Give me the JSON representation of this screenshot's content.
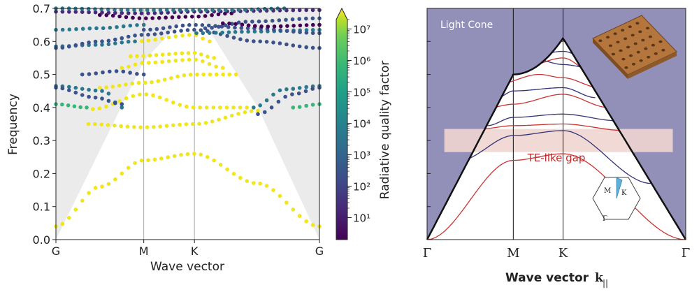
{
  "chart_data": [
    {
      "type": "scatter",
      "xlabel": "Wave vector",
      "ylabel": "Frequency",
      "x_ticks": [
        "G",
        "M",
        "K",
        "G"
      ],
      "x_tick_positions": [
        0,
        1,
        1.577,
        3.0
      ],
      "ylim": [
        0.0,
        0.7
      ],
      "y_ticks": [
        "0.0",
        "0.1",
        "0.2",
        "0.3",
        "0.4",
        "0.5",
        "0.6",
        "0.7"
      ],
      "colorbar": {
        "label": "Radiative quality factor",
        "scale": "log",
        "range": [
          2,
          20000000
        ],
        "ticks": [
          "10¹",
          "10²",
          "10³",
          "10⁴",
          "10⁵",
          "10⁶",
          "10⁷"
        ],
        "tick_values": [
          10,
          100,
          1000,
          10000,
          100000,
          1000000,
          10000000
        ],
        "colormap": "viridis"
      },
      "light_cone": true,
      "series": [
        {
          "kind": "below-cone",
          "color": "#f1e51d",
          "knots": [
            [
              0.0,
              0.04
            ],
            [
              0.5,
              0.16
            ],
            [
              1.0,
              0.24
            ],
            [
              1.577,
              0.26
            ],
            [
              2.3,
              0.17
            ],
            [
              3.0,
              0.04
            ]
          ]
        },
        {
          "kind": "below-cone",
          "color": "#f1e51d",
          "knots": [
            [
              0.37,
              0.35
            ],
            [
              1.0,
              0.34
            ],
            [
              1.577,
              0.35
            ],
            [
              2.3,
              0.39
            ]
          ]
        },
        {
          "kind": "below-cone",
          "color": "#f1e51d",
          "knots": [
            [
              0.42,
              0.395
            ],
            [
              1.0,
              0.44
            ],
            [
              1.577,
              0.4
            ],
            [
              2.25,
              0.4
            ]
          ]
        },
        {
          "kind": "below-cone",
          "color": "#f1e51d",
          "knots": [
            [
              0.5,
              0.46
            ],
            [
              1.0,
              0.475
            ],
            [
              1.577,
              0.5
            ],
            [
              2.05,
              0.5
            ]
          ]
        },
        {
          "kind": "below-cone",
          "color": "#f1e51d",
          "knots": [
            [
              0.75,
              0.52
            ],
            [
              1.0,
              0.535
            ],
            [
              1.577,
              0.545
            ],
            [
              1.9,
              0.52
            ]
          ]
        },
        {
          "kind": "below-cone",
          "color": "#f1e51d",
          "knots": [
            [
              0.85,
              0.555
            ],
            [
              1.577,
              0.565
            ],
            [
              1.8,
              0.55
            ]
          ]
        },
        {
          "kind": "below-cone",
          "color": "#f1e51d",
          "knots": [
            [
              0.9,
              0.6
            ],
            [
              1.577,
              0.62
            ],
            [
              1.75,
              0.6
            ]
          ]
        },
        {
          "kind": "radiative",
          "color": "#35b779",
          "knots": [
            [
              0.0,
              0.41
            ],
            [
              0.35,
              0.4
            ]
          ]
        },
        {
          "kind": "radiative",
          "color": "#35b779",
          "knots": [
            [
              2.7,
              0.4
            ],
            [
              3.0,
              0.41
            ]
          ]
        },
        {
          "kind": "radiative",
          "color": "#2a788e",
          "knots": [
            [
              0.0,
              0.465
            ],
            [
              0.55,
              0.45
            ],
            [
              0.75,
              0.4
            ]
          ]
        },
        {
          "kind": "radiative",
          "color": "#2a788e",
          "knots": [
            [
              2.25,
              0.4
            ],
            [
              2.6,
              0.455
            ],
            [
              3.0,
              0.465
            ]
          ]
        },
        {
          "kind": "radiative",
          "color": "#3b528b",
          "knots": [
            [
              0.0,
              0.46
            ],
            [
              0.45,
              0.43
            ],
            [
              0.75,
              0.41
            ]
          ]
        },
        {
          "kind": "radiative",
          "color": "#3b528b",
          "knots": [
            [
              2.3,
              0.38
            ],
            [
              2.7,
              0.44
            ],
            [
              3.0,
              0.46
            ]
          ]
        },
        {
          "kind": "radiative",
          "color": "#3b528b",
          "knots": [
            [
              0.3,
              0.5
            ],
            [
              0.7,
              0.51
            ],
            [
              1.0,
              0.5
            ]
          ]
        },
        {
          "kind": "radiative",
          "color": "#2a788e",
          "knots": [
            [
              0.0,
              0.585
            ],
            [
              0.5,
              0.59
            ],
            [
              0.9,
              0.6
            ]
          ]
        },
        {
          "kind": "radiative",
          "color": "#3b528b",
          "knots": [
            [
              0.0,
              0.58
            ],
            [
              0.5,
              0.6
            ],
            [
              1.0,
              0.62
            ],
            [
              1.577,
              0.635
            ],
            [
              2.3,
              0.6
            ],
            [
              3.0,
              0.58
            ]
          ]
        },
        {
          "kind": "radiative",
          "color": "#2a788e",
          "knots": [
            [
              0.0,
              0.635
            ],
            [
              0.5,
              0.64
            ],
            [
              1.0,
              0.65
            ]
          ]
        },
        {
          "kind": "radiative",
          "color": "#2a788e",
          "knots": [
            [
              1.6,
              0.625
            ],
            [
              2.3,
              0.63
            ],
            [
              3.0,
              0.635
            ]
          ]
        },
        {
          "kind": "radiative",
          "color": "#3b528b",
          "knots": [
            [
              1.0,
              0.635
            ],
            [
              1.577,
              0.65
            ],
            [
              2.2,
              0.64
            ],
            [
              3.0,
              0.625
            ]
          ]
        },
        {
          "kind": "radiative",
          "color": "#440154",
          "knots": [
            [
              0.5,
              0.68
            ],
            [
              1.0,
              0.67
            ],
            [
              1.577,
              0.675
            ],
            [
              2.0,
              0.685
            ]
          ]
        },
        {
          "kind": "radiative",
          "color": "#482878",
          "knots": [
            [
              0.0,
              0.69
            ],
            [
              1.0,
              0.685
            ],
            [
              1.577,
              0.69
            ],
            [
              3.0,
              0.695
            ]
          ]
        },
        {
          "kind": "radiative",
          "color": "#2a788e",
          "knots": [
            [
              0.0,
              0.7
            ],
            [
              1.0,
              0.695
            ],
            [
              2.0,
              0.695
            ],
            [
              2.6,
              0.7
            ]
          ]
        },
        {
          "kind": "radiative",
          "color": "#3b528b",
          "knots": [
            [
              1.7,
              0.64
            ],
            [
              2.2,
              0.66
            ],
            [
              3.0,
              0.67
            ]
          ]
        },
        {
          "kind": "radiative",
          "color": "#440154",
          "knots": [
            [
              1.9,
              0.655
            ],
            [
              2.4,
              0.645
            ],
            [
              3.0,
              0.65
            ]
          ]
        }
      ]
    },
    {
      "type": "line",
      "xlabel": "Wave vector",
      "xlabel_symbol": "k",
      "xlabel_subscript": "||",
      "x_ticks": [
        "Γ",
        "M",
        "K",
        "Γ"
      ],
      "x_tick_positions": [
        0,
        1,
        1.577,
        3.0
      ],
      "ylim": [
        0.0,
        0.7
      ],
      "light_cone_label": "Light Cone",
      "gap_label": "TE-like gap",
      "gap_range": [
        0.265,
        0.335
      ],
      "inset_labels": [
        "M",
        "K",
        "Γ"
      ],
      "series": [
        {
          "color": "#cc3333",
          "knots": [
            [
              0.0,
              0.0
            ],
            [
              1.0,
              0.24
            ],
            [
              1.577,
              0.26
            ],
            [
              3.0,
              0.0
            ]
          ]
        },
        {
          "color": "#333377",
          "knots": [
            [
              0.38,
              0.24
            ],
            [
              1.0,
              0.315
            ],
            [
              1.577,
              0.33
            ],
            [
              2.6,
              0.17
            ]
          ]
        },
        {
          "color": "#cc3333",
          "knots": [
            [
              0.62,
              0.335
            ],
            [
              1.0,
              0.345
            ],
            [
              1.577,
              0.35
            ],
            [
              2.3,
              0.33
            ]
          ]
        },
        {
          "color": "#333377",
          "knots": [
            [
              0.7,
              0.345
            ],
            [
              1.0,
              0.37
            ],
            [
              1.577,
              0.38
            ],
            [
              2.2,
              0.36
            ]
          ]
        },
        {
          "color": "#cc3333",
          "knots": [
            [
              0.73,
              0.4
            ],
            [
              1.0,
              0.41
            ],
            [
              1.577,
              0.44
            ],
            [
              2.1,
              0.4
            ]
          ]
        },
        {
          "color": "#333377",
          "knots": [
            [
              0.82,
              0.43
            ],
            [
              1.0,
              0.45
            ],
            [
              1.577,
              0.46
            ],
            [
              1.95,
              0.43
            ]
          ]
        },
        {
          "color": "#cc3333",
          "knots": [
            [
              0.88,
              0.5
            ],
            [
              1.0,
              0.51
            ],
            [
              1.577,
              0.55
            ],
            [
              1.95,
              0.5
            ]
          ]
        },
        {
          "color": "#333377",
          "knots": [
            [
              0.9,
              0.53
            ],
            [
              1.577,
              0.57
            ],
            [
              1.85,
              0.55
            ]
          ]
        },
        {
          "color": "#cc3333",
          "knots": [
            [
              0.95,
              0.56
            ],
            [
              1.577,
              0.6
            ],
            [
              1.82,
              0.58
            ]
          ]
        },
        {
          "color": "#333377",
          "knots": [
            [
              1.1,
              0.6
            ],
            [
              1.577,
              0.62
            ],
            [
              1.8,
              0.6
            ]
          ]
        },
        {
          "color": "#cc3333",
          "knots": [
            [
              1.2,
              0.63
            ],
            [
              1.577,
              0.65
            ],
            [
              1.75,
              0.63
            ]
          ]
        },
        {
          "color": "#333377",
          "knots": [
            [
              1.3,
              0.65
            ],
            [
              1.577,
              0.66
            ]
          ]
        },
        {
          "color": "#cc3333",
          "knots": [
            [
              0.8,
              0.47
            ],
            [
              1.3,
              0.5
            ],
            [
              1.577,
              0.49
            ],
            [
              2.0,
              0.46
            ]
          ]
        },
        {
          "color": "#333377",
          "knots": [
            [
              0.85,
              0.52
            ],
            [
              1.2,
              0.55
            ],
            [
              1.577,
              0.53
            ],
            [
              1.9,
              0.52
            ]
          ]
        }
      ]
    }
  ]
}
